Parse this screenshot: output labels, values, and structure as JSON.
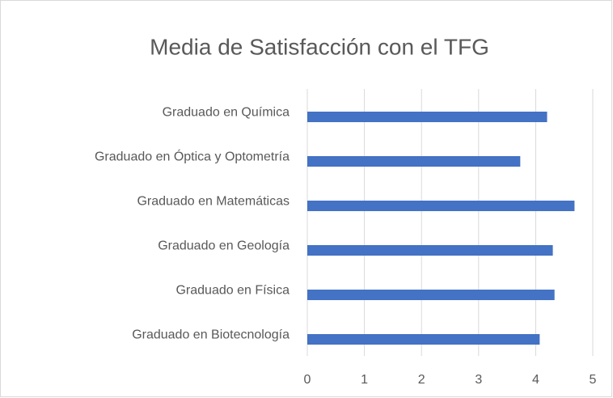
{
  "chart_data": {
    "type": "barh",
    "title": "Media de Satisfacción con el TFG",
    "categories": [
      "Graduado en Química",
      "Graduado en Óptica y Optometría",
      "Graduado en Matemáticas",
      "Graduado en Geología",
      "Graduado en Física",
      "Graduado en Biotecnología"
    ],
    "values": [
      4.2,
      3.73,
      4.68,
      4.3,
      4.33,
      4.07
    ],
    "color": "#4472c4",
    "xlim": [
      0,
      5
    ],
    "xticks": [
      0,
      1,
      2,
      3,
      4,
      5
    ],
    "grid": true
  }
}
